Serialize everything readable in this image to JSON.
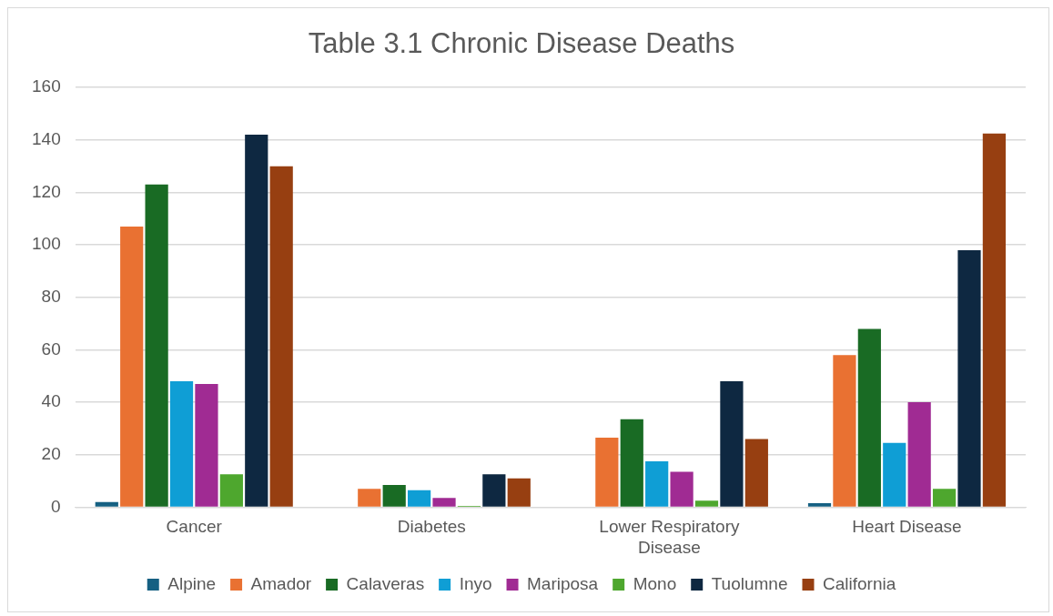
{
  "chart_data": {
    "type": "bar",
    "title": "Table 3.1 Chronic Disease Deaths",
    "categories": [
      "Cancer",
      "Diabetes",
      "Lower Respiratory Disease",
      "Heart Disease"
    ],
    "series": [
      {
        "name": "Alpine",
        "color": "#156082",
        "values": [
          2,
          null,
          null,
          1.5
        ]
      },
      {
        "name": "Amador",
        "color": "#e97132",
        "values": [
          107,
          7,
          26.5,
          58
        ]
      },
      {
        "name": "Calaveras",
        "color": "#196b24",
        "values": [
          123,
          8.5,
          33.5,
          68
        ]
      },
      {
        "name": "Inyo",
        "color": "#0f9ed5",
        "values": [
          48,
          6.5,
          17.5,
          24.5
        ]
      },
      {
        "name": "Mariposa",
        "color": "#a02b93",
        "values": [
          47,
          3.5,
          13.5,
          40
        ]
      },
      {
        "name": "Mono",
        "color": "#4ea72e",
        "values": [
          12.5,
          0.5,
          2.5,
          7
        ]
      },
      {
        "name": "Tuolumne",
        "color": "#0e2841",
        "values": [
          142,
          12.5,
          48,
          98
        ]
      },
      {
        "name": "California",
        "color": "#973f11",
        "values": [
          130,
          11,
          26,
          142.5
        ]
      }
    ],
    "ylim": [
      0,
      160
    ],
    "yticks": [
      0,
      20,
      40,
      60,
      80,
      100,
      120,
      140,
      160
    ],
    "grid": "y",
    "legend": "bottom"
  }
}
